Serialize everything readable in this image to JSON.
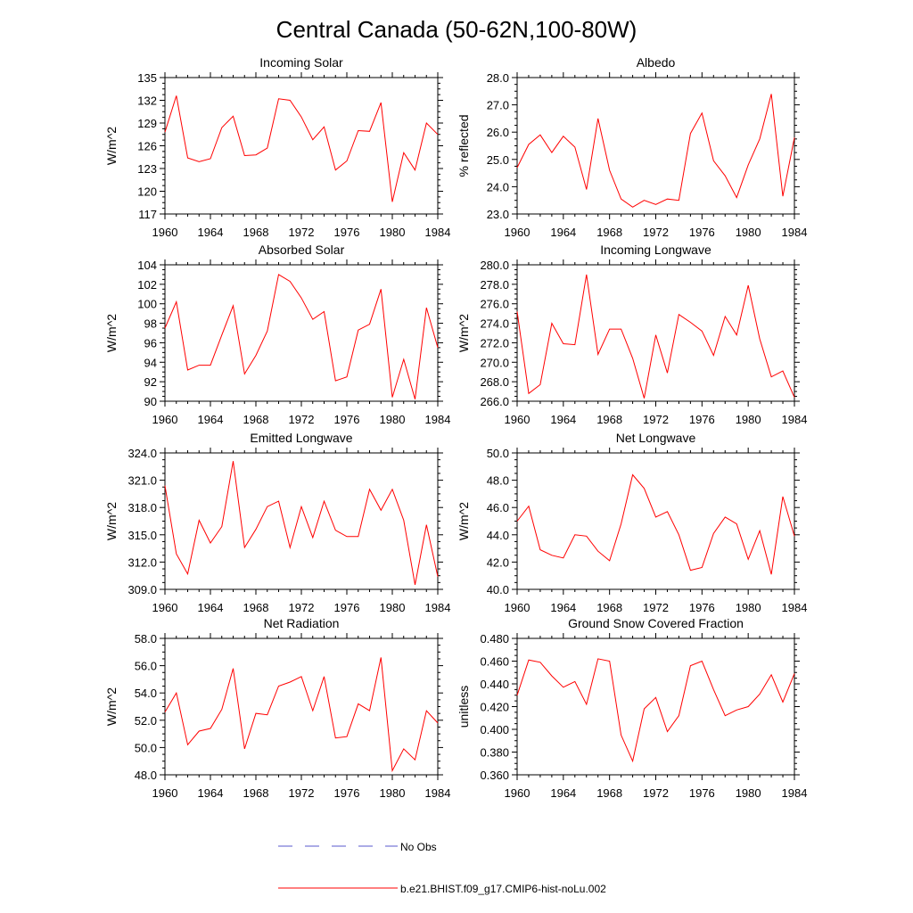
{
  "title": "Central Canada (50-62N,100-80W)",
  "legend": [
    {
      "label": "No Obs",
      "color": "#5a5acd",
      "style": "dashed"
    },
    {
      "label": "b.e21.BHIST.f09_g17.CMIP6-hist-noLu.002",
      "color": "#ff0000",
      "style": "solid"
    }
  ],
  "chart_data": [
    {
      "type": "line",
      "title": "Incoming Solar",
      "ylabel": "W/m^2",
      "xlim": [
        1960,
        1984
      ],
      "ylim": [
        117,
        135
      ],
      "xticks": [
        1960,
        1964,
        1968,
        1972,
        1976,
        1980,
        1984
      ],
      "xtick_labels": [
        "1960",
        "1964",
        "1968",
        "1972",
        "1976",
        "1980",
        "1984"
      ],
      "yticks": [
        117,
        120,
        123,
        126,
        129,
        132,
        135
      ],
      "ytick_labels": [
        "117",
        "120",
        "123",
        "126",
        "129",
        "132",
        "135"
      ],
      "ytick_side": "left",
      "x": [
        1960,
        1961,
        1962,
        1963,
        1964,
        1965,
        1966,
        1967,
        1968,
        1969,
        1970,
        1971,
        1972,
        1973,
        1974,
        1975,
        1976,
        1977,
        1978,
        1979,
        1980,
        1981,
        1982,
        1983,
        1984
      ],
      "series": [
        {
          "name": "b.e21.BHIST.f09_g17.CMIP6-hist-noLu.002",
          "color": "#ff0000",
          "values": [
            127.8,
            132.6,
            124.4,
            123.9,
            124.3,
            128.4,
            129.9,
            124.7,
            124.8,
            125.7,
            132.2,
            132.0,
            129.8,
            126.8,
            128.5,
            122.8,
            124.0,
            128.0,
            127.9,
            131.7,
            118.6,
            125.1,
            122.8,
            129.0,
            127.5
          ]
        }
      ]
    },
    {
      "type": "line",
      "title": "Albedo",
      "ylabel": "% reflected",
      "xlim": [
        1960,
        1984
      ],
      "ylim": [
        23.0,
        28.0
      ],
      "xticks": [
        1960,
        1964,
        1968,
        1972,
        1976,
        1980,
        1984
      ],
      "xtick_labels": [
        "1960",
        "1964",
        "1968",
        "1972",
        "1976",
        "1980",
        "1984"
      ],
      "yticks": [
        23,
        24,
        25,
        26,
        27,
        28
      ],
      "ytick_labels": [
        "23.0",
        "24.0",
        "25.0",
        "26.0",
        "27.0",
        "28.0"
      ],
      "ytick_side": "left",
      "x": [
        1960,
        1961,
        1962,
        1963,
        1964,
        1965,
        1966,
        1967,
        1968,
        1969,
        1970,
        1971,
        1972,
        1973,
        1974,
        1975,
        1976,
        1977,
        1978,
        1979,
        1980,
        1981,
        1982,
        1983,
        1984
      ],
      "series": [
        {
          "name": "b.e21.BHIST.f09_g17.CMIP6-hist-noLu.002",
          "color": "#ff0000",
          "values": [
            24.7,
            25.55,
            25.9,
            25.25,
            25.85,
            25.45,
            23.9,
            26.5,
            24.6,
            23.55,
            23.25,
            23.5,
            23.35,
            23.55,
            23.5,
            25.95,
            26.7,
            24.95,
            24.4,
            23.6,
            24.8,
            25.75,
            27.4,
            23.65,
            25.8
          ]
        }
      ]
    },
    {
      "type": "line",
      "title": "Absorbed Solar",
      "ylabel": "W/m^2",
      "xlim": [
        1960,
        1984
      ],
      "ylim": [
        90,
        104
      ],
      "xticks": [
        1960,
        1964,
        1968,
        1972,
        1976,
        1980,
        1984
      ],
      "xtick_labels": [
        "1960",
        "1964",
        "1968",
        "1972",
        "1976",
        "1980",
        "1984"
      ],
      "yticks": [
        90,
        92,
        94,
        96,
        98,
        100,
        102,
        104
      ],
      "ytick_labels": [
        "90",
        "92",
        "94",
        "96",
        "98",
        "100",
        "102",
        "104"
      ],
      "ytick_side": "left",
      "x": [
        1960,
        1961,
        1962,
        1963,
        1964,
        1965,
        1966,
        1967,
        1968,
        1969,
        1970,
        1971,
        1972,
        1973,
        1974,
        1975,
        1976,
        1977,
        1978,
        1979,
        1980,
        1981,
        1982,
        1983,
        1984
      ],
      "series": [
        {
          "name": "b.e21.BHIST.f09_g17.CMIP6-hist-noLu.002",
          "color": "#ff0000",
          "values": [
            97.5,
            100.2,
            93.2,
            93.7,
            93.7,
            96.8,
            99.8,
            92.8,
            94.7,
            97.2,
            103.0,
            102.3,
            100.6,
            98.4,
            99.2,
            92.1,
            92.5,
            97.3,
            97.9,
            101.5,
            90.4,
            94.3,
            90.2,
            99.6,
            95.5
          ]
        }
      ]
    },
    {
      "type": "line",
      "title": "Incoming Longwave",
      "ylabel": "W/m^2",
      "xlim": [
        1960,
        1984
      ],
      "ylim": [
        266.0,
        280.0
      ],
      "xticks": [
        1960,
        1964,
        1968,
        1972,
        1976,
        1980,
        1984
      ],
      "xtick_labels": [
        "1960",
        "1964",
        "1968",
        "1972",
        "1976",
        "1980",
        "1984"
      ],
      "yticks": [
        266,
        268,
        270,
        272,
        274,
        276,
        278,
        280
      ],
      "ytick_labels": [
        "266.0",
        "268.0",
        "270.0",
        "272.0",
        "274.0",
        "276.0",
        "278.0",
        "280.0"
      ],
      "ytick_side": "left",
      "x": [
        1960,
        1961,
        1962,
        1963,
        1964,
        1965,
        1966,
        1967,
        1968,
        1969,
        1970,
        1971,
        1972,
        1973,
        1974,
        1975,
        1976,
        1977,
        1978,
        1979,
        1980,
        1981,
        1982,
        1983,
        1984
      ],
      "series": [
        {
          "name": "b.e21.BHIST.f09_g17.CMIP6-hist-noLu.002",
          "color": "#ff0000",
          "values": [
            275.2,
            266.8,
            267.7,
            274.0,
            271.9,
            271.8,
            279.0,
            270.8,
            273.4,
            273.4,
            270.4,
            266.3,
            272.8,
            268.9,
            274.9,
            274.1,
            273.2,
            270.7,
            274.7,
            272.8,
            277.9,
            272.4,
            268.5,
            269.1,
            266.4
          ]
        }
      ]
    },
    {
      "type": "line",
      "title": "Emitted Longwave",
      "ylabel": "W/m^2",
      "xlim": [
        1960,
        1984
      ],
      "ylim": [
        309.0,
        324.0
      ],
      "xticks": [
        1960,
        1964,
        1968,
        1972,
        1976,
        1980,
        1984
      ],
      "xtick_labels": [
        "1960",
        "1964",
        "1968",
        "1972",
        "1976",
        "1980",
        "1984"
      ],
      "yticks": [
        309,
        312,
        315,
        318,
        321,
        324
      ],
      "ytick_labels": [
        "309.0",
        "312.0",
        "315.0",
        "318.0",
        "321.0",
        "324.0"
      ],
      "ytick_side": "left",
      "x": [
        1960,
        1961,
        1962,
        1963,
        1964,
        1965,
        1966,
        1967,
        1968,
        1969,
        1970,
        1971,
        1972,
        1973,
        1974,
        1975,
        1976,
        1977,
        1978,
        1979,
        1980,
        1981,
        1982,
        1983,
        1984
      ],
      "series": [
        {
          "name": "b.e21.BHIST.f09_g17.CMIP6-hist-noLu.002",
          "color": "#ff0000",
          "values": [
            320.4,
            312.9,
            310.7,
            316.6,
            314.1,
            315.9,
            323.1,
            313.6,
            315.6,
            318.1,
            318.7,
            313.6,
            318.1,
            314.7,
            318.7,
            315.5,
            314.8,
            314.8,
            320.0,
            317.7,
            320.0,
            316.6,
            309.5,
            316.1,
            310.4
          ]
        }
      ]
    },
    {
      "type": "line",
      "title": "Net Longwave",
      "ylabel": "W/m^2",
      "xlim": [
        1960,
        1984
      ],
      "ylim": [
        40.0,
        50.0
      ],
      "xticks": [
        1960,
        1964,
        1968,
        1972,
        1976,
        1980,
        1984
      ],
      "xtick_labels": [
        "1960",
        "1964",
        "1968",
        "1972",
        "1976",
        "1980",
        "1984"
      ],
      "yticks": [
        40,
        42,
        44,
        46,
        48,
        50
      ],
      "ytick_labels": [
        "40.0",
        "42.0",
        "44.0",
        "46.0",
        "48.0",
        "50.0"
      ],
      "ytick_side": "left",
      "x": [
        1960,
        1961,
        1962,
        1963,
        1964,
        1965,
        1966,
        1967,
        1968,
        1969,
        1970,
        1971,
        1972,
        1973,
        1974,
        1975,
        1976,
        1977,
        1978,
        1979,
        1980,
        1981,
        1982,
        1983,
        1984
      ],
      "series": [
        {
          "name": "b.e21.BHIST.f09_g17.CMIP6-hist-noLu.002",
          "color": "#ff0000",
          "values": [
            45.0,
            46.1,
            42.9,
            42.5,
            42.3,
            44.0,
            43.9,
            42.8,
            42.1,
            44.8,
            48.4,
            47.4,
            45.3,
            45.7,
            44.0,
            41.4,
            41.6,
            44.1,
            45.3,
            44.8,
            42.2,
            44.3,
            41.1,
            46.8,
            43.9
          ]
        }
      ]
    },
    {
      "type": "line",
      "title": "Net Radiation",
      "ylabel": "W/m^2",
      "xlim": [
        1960,
        1984
      ],
      "ylim": [
        48.0,
        58.0
      ],
      "xticks": [
        1960,
        1964,
        1968,
        1972,
        1976,
        1980,
        1984
      ],
      "xtick_labels": [
        "1960",
        "1964",
        "1968",
        "1972",
        "1976",
        "1980",
        "1984"
      ],
      "yticks": [
        48,
        50,
        52,
        54,
        56,
        58
      ],
      "ytick_labels": [
        "48.0",
        "50.0",
        "52.0",
        "54.0",
        "56.0",
        "58.0"
      ],
      "ytick_side": "left",
      "x": [
        1960,
        1961,
        1962,
        1963,
        1964,
        1965,
        1966,
        1967,
        1968,
        1969,
        1970,
        1971,
        1972,
        1973,
        1974,
        1975,
        1976,
        1977,
        1978,
        1979,
        1980,
        1981,
        1982,
        1983,
        1984
      ],
      "series": [
        {
          "name": "b.e21.BHIST.f09_g17.CMIP6-hist-noLu.002",
          "color": "#ff0000",
          "values": [
            52.6,
            54.0,
            50.2,
            51.2,
            51.4,
            52.8,
            55.8,
            49.9,
            52.5,
            52.4,
            54.5,
            54.8,
            55.2,
            52.7,
            55.2,
            50.7,
            50.8,
            53.2,
            52.7,
            56.6,
            48.3,
            49.9,
            49.1,
            52.7,
            51.8
          ]
        }
      ]
    },
    {
      "type": "line",
      "title": "Ground Snow Covered Fraction",
      "ylabel": "unitless",
      "xlim": [
        1960,
        1984
      ],
      "ylim": [
        0.36,
        0.48
      ],
      "xticks": [
        1960,
        1964,
        1968,
        1972,
        1976,
        1980,
        1984
      ],
      "xtick_labels": [
        "1960",
        "1964",
        "1968",
        "1972",
        "1976",
        "1980",
        "1984"
      ],
      "yticks": [
        0.36,
        0.38,
        0.4,
        0.42,
        0.44,
        0.46,
        0.48
      ],
      "ytick_labels": [
        "0.360",
        "0.380",
        "0.400",
        "0.420",
        "0.440",
        "0.460",
        "0.480"
      ],
      "ytick_side": "left",
      "x": [
        1960,
        1961,
        1962,
        1963,
        1964,
        1965,
        1966,
        1967,
        1968,
        1969,
        1970,
        1971,
        1972,
        1973,
        1974,
        1975,
        1976,
        1977,
        1978,
        1979,
        1980,
        1981,
        1982,
        1983,
        1984
      ],
      "series": [
        {
          "name": "b.e21.BHIST.f09_g17.CMIP6-hist-noLu.002",
          "color": "#ff0000",
          "values": [
            0.43,
            0.461,
            0.459,
            0.447,
            0.437,
            0.442,
            0.422,
            0.462,
            0.46,
            0.395,
            0.372,
            0.418,
            0.428,
            0.398,
            0.412,
            0.456,
            0.46,
            0.435,
            0.412,
            0.417,
            0.42,
            0.431,
            0.448,
            0.424,
            0.449
          ]
        }
      ]
    }
  ]
}
